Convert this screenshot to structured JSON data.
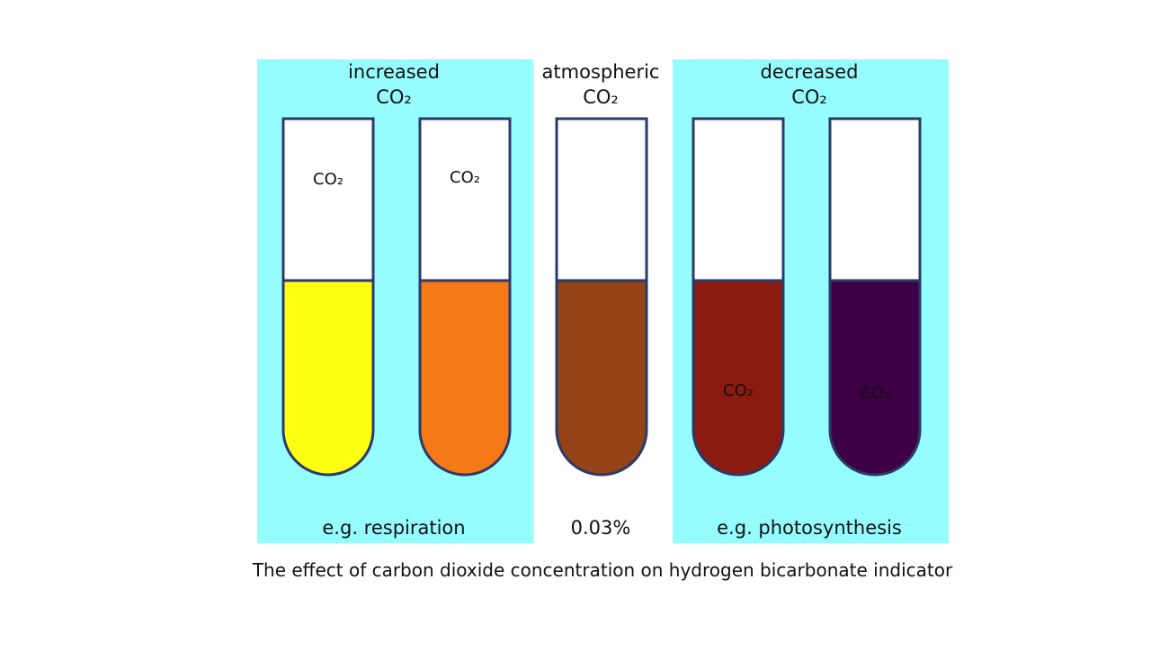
{
  "groups": [
    {
      "title": [
        "increased",
        "CO₂"
      ],
      "caption": "e.g. respiration"
    },
    {
      "title": [
        "atmospheric",
        "CO₂"
      ],
      "caption": "0.03%"
    },
    {
      "title": [
        "decreased",
        "CO₂"
      ],
      "caption": "e.g. photosynthesis"
    }
  ],
  "tubes": [
    {
      "label": "CO₂",
      "color": "#ffff14"
    },
    {
      "label": "CO₂",
      "color": "#f57a17"
    },
    {
      "color": "#944318"
    },
    {
      "label": "CO₂",
      "color": "#8b1a10"
    },
    {
      "label": "CO₂",
      "color": "#3d0045"
    }
  ],
  "caption": "The effect of carbon dioxide concentration on hydrogen bicarbonate indicator"
}
